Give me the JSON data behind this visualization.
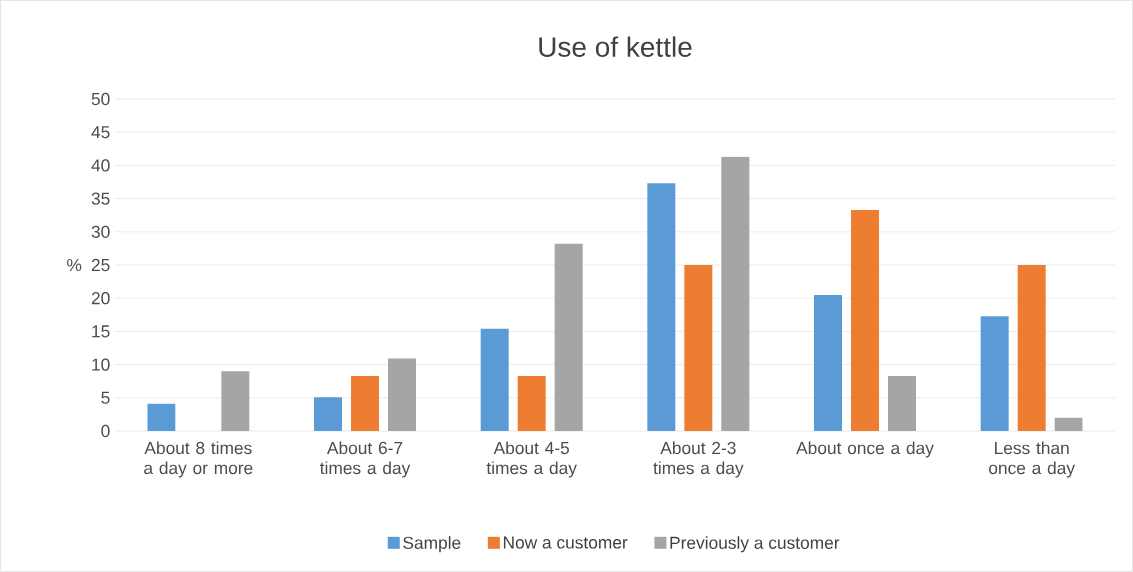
{
  "chart_data": {
    "type": "bar",
    "title": "Use of kettle",
    "ylabel": "%",
    "categories": [
      "About 8 times a day or more",
      "About 6-7 times a day",
      "About 4-5 times a day",
      "About 2-3 times a day",
      "About once a day",
      "Less than once a day"
    ],
    "series": [
      {
        "name": "Sample",
        "color": "#5b9bd5",
        "values": [
          4.1,
          5.1,
          15.4,
          37.3,
          20.5,
          17.3
        ]
      },
      {
        "name": "Now a customer",
        "color": "#ed7d31",
        "values": [
          0,
          8.3,
          8.3,
          25,
          33.3,
          25
        ]
      },
      {
        "name": "Previously a customer",
        "color": "#a5a5a5",
        "values": [
          9,
          10.9,
          28.2,
          41.3,
          8.3,
          2
        ]
      }
    ],
    "ylim": [
      0,
      50
    ],
    "yticks": [
      0,
      5,
      10,
      15,
      20,
      25,
      30,
      35,
      40,
      45,
      50
    ],
    "grid": "y",
    "legend": "bottom"
  }
}
